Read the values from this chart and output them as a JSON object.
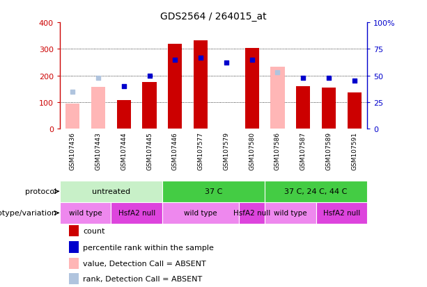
{
  "title": "GDS2564 / 264015_at",
  "samples": [
    "GSM107436",
    "GSM107443",
    "GSM107444",
    "GSM107445",
    "GSM107446",
    "GSM107577",
    "GSM107579",
    "GSM107580",
    "GSM107586",
    "GSM107587",
    "GSM107589",
    "GSM107591"
  ],
  "count_values": [
    null,
    null,
    107,
    175,
    320,
    332,
    null,
    305,
    null,
    160,
    155,
    137
  ],
  "count_absent": [
    94,
    158,
    null,
    null,
    null,
    null,
    null,
    null,
    232,
    null,
    null,
    null
  ],
  "rank_values_pct": [
    null,
    null,
    40,
    50,
    65,
    67,
    62,
    65,
    null,
    48,
    48,
    45
  ],
  "rank_absent_pct": [
    35,
    48,
    null,
    null,
    null,
    null,
    null,
    null,
    53,
    null,
    null,
    null
  ],
  "ylim_left": [
    0,
    400
  ],
  "ylim_right": [
    0,
    100
  ],
  "yticks_left": [
    0,
    100,
    200,
    300,
    400
  ],
  "ytick_labels_right": [
    "0",
    "25",
    "50",
    "75",
    "100%"
  ],
  "bar_color": "#cc0000",
  "bar_absent_color": "#ffb6b6",
  "rank_color": "#0000cc",
  "rank_absent_color": "#b0c4de",
  "bg_color": "#ffffff",
  "plot_bg": "#ffffff",
  "xtick_bg": "#d3d3d3",
  "protocol_segs": [
    {
      "start": 0,
      "end": 3,
      "label": "untreated",
      "color": "#c8f0c8"
    },
    {
      "start": 4,
      "end": 7,
      "label": "37 C",
      "color": "#44cc44"
    },
    {
      "start": 8,
      "end": 11,
      "label": "37 C, 24 C, 44 C",
      "color": "#44cc44"
    }
  ],
  "geno_segs": [
    {
      "start": 0,
      "end": 1,
      "label": "wild type",
      "color": "#ee88ee"
    },
    {
      "start": 2,
      "end": 3,
      "label": "HsfA2 null",
      "color": "#dd44dd"
    },
    {
      "start": 4,
      "end": 6,
      "label": "wild type",
      "color": "#ee88ee"
    },
    {
      "start": 7,
      "end": 7,
      "label": "HsfA2 null",
      "color": "#dd44dd"
    },
    {
      "start": 8,
      "end": 9,
      "label": "wild type",
      "color": "#ee88ee"
    },
    {
      "start": 10,
      "end": 11,
      "label": "HsfA2 null",
      "color": "#dd44dd"
    }
  ],
  "legend_items": [
    {
      "label": "count",
      "color": "#cc0000"
    },
    {
      "label": "percentile rank within the sample",
      "color": "#0000cc"
    },
    {
      "label": "value, Detection Call = ABSENT",
      "color": "#ffb6b6"
    },
    {
      "label": "rank, Detection Call = ABSENT",
      "color": "#b0c4de"
    }
  ],
  "protocol_label": "protocol",
  "genotype_label": "genotype/variation",
  "left_axis_color": "#cc0000",
  "right_axis_color": "#0000cc"
}
